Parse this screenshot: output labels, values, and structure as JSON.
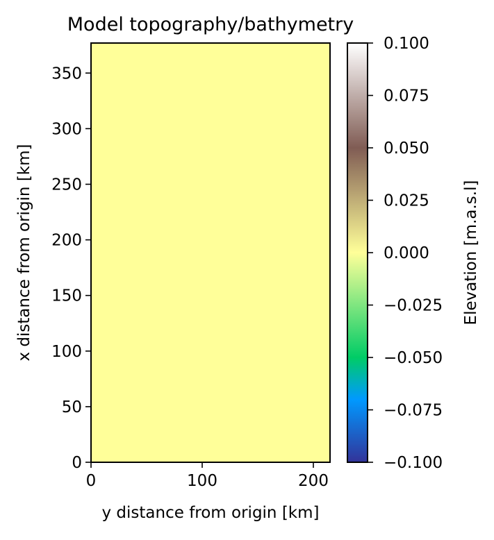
{
  "chart_data": {
    "type": "heatmap",
    "title": "Model topography/bathymetry",
    "xlabel": "y distance from origin [km]",
    "ylabel": "x distance from origin [km]",
    "xlim": [
      0,
      215
    ],
    "ylim": [
      0,
      377
    ],
    "x_ticks": [
      0,
      100,
      200
    ],
    "x_tick_labels": [
      "0",
      "100",
      "200"
    ],
    "y_ticks": [
      0,
      50,
      100,
      150,
      200,
      250,
      300,
      350
    ],
    "y_tick_labels": [
      "0",
      "50",
      "100",
      "150",
      "200",
      "250",
      "300",
      "350"
    ],
    "grid": false,
    "cells": [
      {
        "x0": 0,
        "x1": 215,
        "y0": 0,
        "y1": 377,
        "value": 0.0
      }
    ],
    "colorbar": {
      "label": "Elevation [m.a.s.l]",
      "colormap": "terrain",
      "vmin": -0.1,
      "vmax": 0.1,
      "ticks": [
        -0.1,
        -0.075,
        -0.05,
        -0.025,
        0.0,
        0.025,
        0.05,
        0.075,
        0.1
      ],
      "tick_labels": [
        "−0.100",
        "−0.075",
        "−0.050",
        "−0.025",
        "0.000",
        "0.025",
        "0.050",
        "0.075",
        "0.100"
      ],
      "stops": [
        {
          "value": -0.1,
          "color": "#333399"
        },
        {
          "value": -0.07,
          "color": "#0099ff"
        },
        {
          "value": -0.05,
          "color": "#00cc66"
        },
        {
          "value": 0.0,
          "color": "#ffff99"
        },
        {
          "value": 0.05,
          "color": "#805c54"
        },
        {
          "value": 0.1,
          "color": "#ffffff"
        }
      ]
    }
  }
}
